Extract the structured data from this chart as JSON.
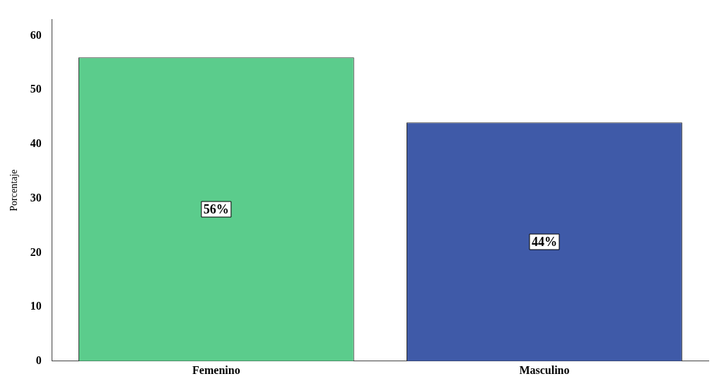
{
  "chart_data": {
    "type": "bar",
    "ylabel": "Porcentaje",
    "categories": [
      "Femenino",
      "Masculino"
    ],
    "values": [
      56,
      44
    ],
    "colors": [
      "#5bcc8c",
      "#3f5aa8"
    ],
    "value_labels": [
      "56%",
      "44%"
    ],
    "ylim": [
      0,
      63
    ],
    "yticks": [
      0,
      10,
      20,
      30,
      40,
      50,
      60
    ],
    "grid": false,
    "legend": false
  }
}
